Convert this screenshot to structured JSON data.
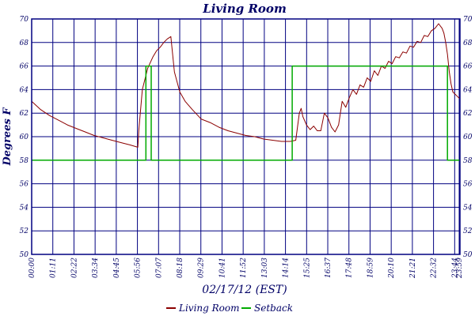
{
  "chart_data": {
    "type": "line",
    "title": "Living Room",
    "xlabel": "02/17/12 (EST)",
    "ylabel": "Degrees F",
    "ylim": [
      50,
      70
    ],
    "yticks": [
      50,
      52,
      54,
      56,
      58,
      60,
      62,
      64,
      66,
      68,
      70
    ],
    "xlim_hours": [
      0,
      24
    ],
    "xtick_labels": [
      "00:00",
      "01:11",
      "02:22",
      "03:34",
      "04:45",
      "05:56",
      "07:07",
      "08:18",
      "09:29",
      "10:41",
      "11:52",
      "13:03",
      "14:14",
      "15:25",
      "16:37",
      "17:48",
      "18:59",
      "20:10",
      "21:21",
      "22:32",
      "23:44",
      "23:59"
    ],
    "grid": true,
    "legend_position": "bottom-center",
    "colors": {
      "living_room": "#8b0000",
      "setback": "#00aa00",
      "grid": "#000080",
      "text": "#000066"
    },
    "series": [
      {
        "name": "Living Room",
        "x": [
          0.0,
          0.5,
          1.0,
          1.5,
          2.0,
          2.5,
          3.0,
          3.5,
          4.0,
          4.5,
          5.0,
          5.5,
          5.95,
          6.0,
          6.2,
          6.5,
          6.8,
          7.0,
          7.2,
          7.4,
          7.6,
          7.8,
          8.0,
          8.3,
          8.6,
          9.0,
          9.5,
          10.0,
          10.5,
          11.0,
          11.5,
          12.0,
          12.5,
          13.0,
          13.5,
          14.0,
          14.5,
          14.8,
          15.0,
          15.1,
          15.2,
          15.4,
          15.6,
          15.8,
          16.0,
          16.2,
          16.4,
          16.6,
          16.8,
          17.0,
          17.2,
          17.4,
          17.6,
          17.8,
          18.0,
          18.2,
          18.4,
          18.6,
          18.8,
          19.0,
          19.2,
          19.4,
          19.6,
          19.8,
          20.0,
          20.2,
          20.4,
          20.6,
          20.8,
          21.0,
          21.2,
          21.4,
          21.6,
          21.8,
          22.0,
          22.2,
          22.4,
          22.6,
          22.8,
          23.0,
          23.1,
          23.2,
          23.3,
          23.4,
          23.5,
          23.6,
          23.8,
          24.0
        ],
        "values": [
          63.0,
          62.3,
          61.8,
          61.4,
          61.0,
          60.7,
          60.4,
          60.1,
          59.9,
          59.7,
          59.5,
          59.3,
          59.1,
          60.5,
          64.0,
          65.8,
          66.8,
          67.3,
          67.6,
          68.0,
          68.3,
          68.5,
          65.5,
          63.8,
          63.0,
          62.3,
          61.5,
          61.2,
          60.8,
          60.5,
          60.3,
          60.1,
          60.0,
          59.8,
          59.7,
          59.6,
          59.6,
          59.7,
          62.0,
          62.4,
          61.7,
          61.0,
          60.6,
          60.9,
          60.5,
          60.5,
          62.0,
          61.6,
          60.8,
          60.4,
          61.0,
          63.0,
          62.5,
          63.3,
          64.0,
          63.6,
          64.4,
          64.2,
          65.0,
          64.7,
          65.6,
          65.2,
          66.0,
          65.8,
          66.4,
          66.2,
          66.8,
          66.7,
          67.2,
          67.1,
          67.7,
          67.6,
          68.1,
          68.0,
          68.6,
          68.5,
          69.0,
          69.2,
          69.6,
          69.2,
          68.8,
          68.0,
          67.0,
          65.5,
          64.5,
          63.8,
          63.5,
          63.2
        ]
      },
      {
        "name": "Setback",
        "x": [
          0.0,
          6.4,
          6.4,
          6.7,
          6.7,
          14.6,
          14.6,
          23.3,
          23.3,
          24.0
        ],
        "values": [
          58,
          58,
          66,
          66,
          58,
          58,
          66,
          66,
          58,
          58
        ]
      }
    ]
  }
}
